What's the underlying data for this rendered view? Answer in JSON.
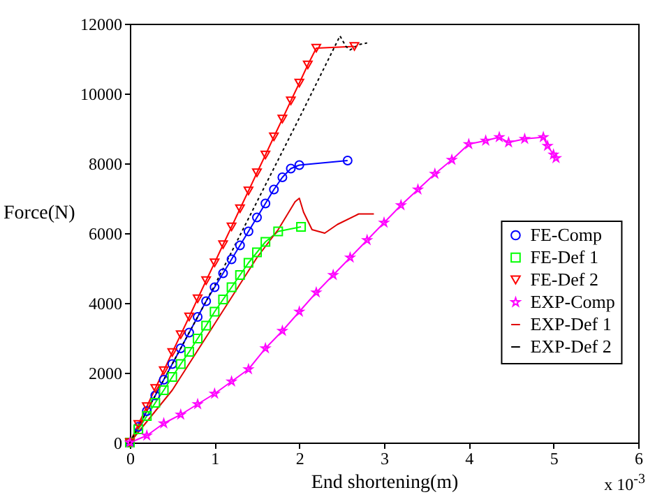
{
  "chart_data": {
    "type": "line",
    "xlabel": "End shortening(m)",
    "ylabel": "Force(N)",
    "annotations": [
      "x 10$^{-3}$"
    ],
    "xlim": [
      0,
      6
    ],
    "xticks": [
      0,
      1,
      2,
      3,
      4,
      5,
      6
    ],
    "ylim": [
      0,
      12000
    ],
    "yticks": [
      0,
      2000,
      4000,
      6000,
      8000,
      10000,
      12000
    ],
    "grid": false,
    "legend": "right",
    "series": [
      {
        "name": "FE-Comp",
        "color": "#0000ff",
        "marker": "circle",
        "line_style": "solid",
        "x": [
          0,
          0.1,
          0.2,
          0.3,
          0.4,
          0.5,
          0.6,
          0.7,
          0.8,
          0.9,
          1.0,
          1.1,
          1.2,
          1.3,
          1.4,
          1.5,
          1.6,
          1.7,
          1.8,
          1.9,
          2.0,
          2.57
        ],
        "values": [
          0,
          450,
          900,
          1350,
          1800,
          2250,
          2700,
          3150,
          3600,
          4050,
          4450,
          4850,
          5250,
          5650,
          6050,
          6450,
          6850,
          7250,
          7600,
          7850,
          7950,
          8080
        ]
      },
      {
        "name": "FE-Def 1",
        "color": "#00ff00",
        "marker": "square",
        "line_style": "solid",
        "x": [
          0,
          0.1,
          0.2,
          0.3,
          0.4,
          0.5,
          0.6,
          0.7,
          0.8,
          0.9,
          1.0,
          1.1,
          1.2,
          1.3,
          1.4,
          1.5,
          1.6,
          1.75,
          2.02
        ],
        "values": [
          0,
          380,
          760,
          1140,
          1500,
          1880,
          2250,
          2600,
          2980,
          3350,
          3750,
          4100,
          4450,
          4800,
          5150,
          5450,
          5750,
          6050,
          6180
        ]
      },
      {
        "name": "FE-Def 2",
        "color": "#ff0000",
        "marker": "triangle",
        "line_style": "solid",
        "x": [
          0,
          0.1,
          0.2,
          0.3,
          0.4,
          0.5,
          0.6,
          0.7,
          0.8,
          0.9,
          1.0,
          1.1,
          1.2,
          1.3,
          1.4,
          1.5,
          1.6,
          1.7,
          1.8,
          1.9,
          2.0,
          2.1,
          2.2,
          2.65
        ],
        "values": [
          0,
          520,
          1030,
          1550,
          2060,
          2580,
          3090,
          3600,
          4120,
          4640,
          5150,
          5670,
          6180,
          6700,
          7210,
          7730,
          8240,
          8760,
          9270,
          9790,
          10300,
          10820,
          11300,
          11350
        ]
      },
      {
        "name": "EXP-Comp",
        "color": "#ff00ff",
        "marker": "star",
        "line_style": "solid",
        "x": [
          0,
          0.2,
          0.4,
          0.6,
          0.8,
          1.0,
          1.2,
          1.4,
          1.6,
          1.8,
          2.0,
          2.2,
          2.4,
          2.6,
          2.8,
          3.0,
          3.2,
          3.4,
          3.6,
          3.8,
          4.0,
          4.2,
          4.36,
          4.47,
          4.66,
          4.88,
          4.93,
          5.0,
          5.03
        ],
        "values": [
          0,
          200,
          550,
          800,
          1100,
          1400,
          1750,
          2100,
          2700,
          3200,
          3750,
          4300,
          4800,
          5300,
          5800,
          6300,
          6800,
          7250,
          7700,
          8100,
          8550,
          8650,
          8750,
          8600,
          8700,
          8750,
          8500,
          8250,
          8150
        ]
      },
      {
        "name": "EXP-Def 1",
        "color": "#e00000",
        "marker": "none",
        "line_style": "solid",
        "x": [
          0,
          0.5,
          1.0,
          1.5,
          1.75,
          1.95,
          2.0,
          2.05,
          2.15,
          2.3,
          2.45,
          2.7,
          2.88
        ],
        "values": [
          0,
          1500,
          3400,
          5300,
          6100,
          6900,
          7000,
          6600,
          6100,
          6000,
          6250,
          6550,
          6550
        ]
      },
      {
        "name": "EXP-Def 2",
        "color": "#000000",
        "marker": "none",
        "line_style": "dotted",
        "x": [
          0,
          0.5,
          1.0,
          1.5,
          2.0,
          2.48,
          2.55,
          2.6,
          2.7,
          2.8
        ],
        "values": [
          0,
          2250,
          4500,
          6900,
          9300,
          11650,
          11350,
          11250,
          11400,
          11450
        ]
      }
    ]
  }
}
